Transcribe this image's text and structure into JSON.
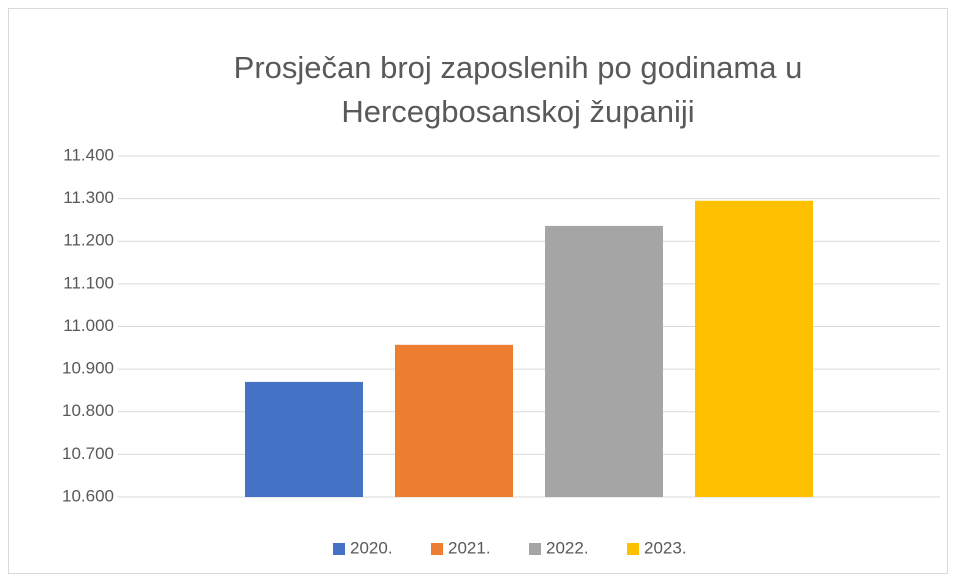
{
  "chart_data": {
    "type": "bar",
    "title": "Prosječan broj zaposlenih po godinama u Hercegbosanskoj županiji",
    "categories": [
      null
    ],
    "series": [
      {
        "name": "2020.",
        "color": "#4472c4",
        "values": [
          10870
        ]
      },
      {
        "name": "2021.",
        "color": "#ed7d31",
        "values": [
          10957
        ]
      },
      {
        "name": "2022.",
        "color": "#a5a5a5",
        "values": [
          11236
        ]
      },
      {
        "name": "2023.",
        "color": "#ffc000",
        "values": [
          11295
        ]
      }
    ],
    "ylim": [
      10600,
      11400
    ],
    "yticks": [
      {
        "value": 10600,
        "label": "10.600"
      },
      {
        "value": 10700,
        "label": "10.700"
      },
      {
        "value": 10800,
        "label": "10.800"
      },
      {
        "value": 10900,
        "label": "10.900"
      },
      {
        "value": 11000,
        "label": "11.000"
      },
      {
        "value": 11100,
        "label": "11.100"
      },
      {
        "value": 11200,
        "label": "11.200"
      },
      {
        "value": 11300,
        "label": "11.300"
      },
      {
        "value": 11400,
        "label": "11.400"
      }
    ],
    "grid": true,
    "legend": "bottom"
  }
}
